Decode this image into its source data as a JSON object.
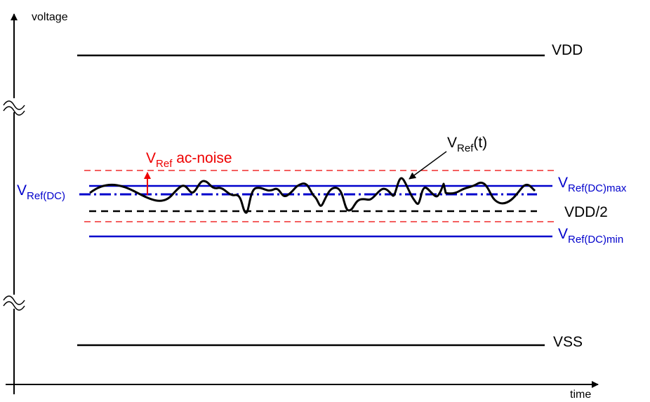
{
  "axes": {
    "y_label": "voltage",
    "x_label": "time"
  },
  "levels": {
    "vdd": "VDD",
    "vss": "VSS",
    "vdd_half": "VDD/2",
    "vref_dc_max": {
      "main": "V",
      "sub": "Ref(DC)max"
    },
    "vref_dc_min": {
      "main": "V",
      "sub": "Ref(DC)min"
    },
    "vref_dc": {
      "main": "V",
      "sub": "Ref(DC)"
    }
  },
  "annotations": {
    "ac_noise": {
      "main": "V",
      "sub": "Ref",
      "rest": " ac-noise"
    },
    "vref_t": {
      "main": "V",
      "sub": "Ref",
      "rest": "(t)"
    }
  }
}
